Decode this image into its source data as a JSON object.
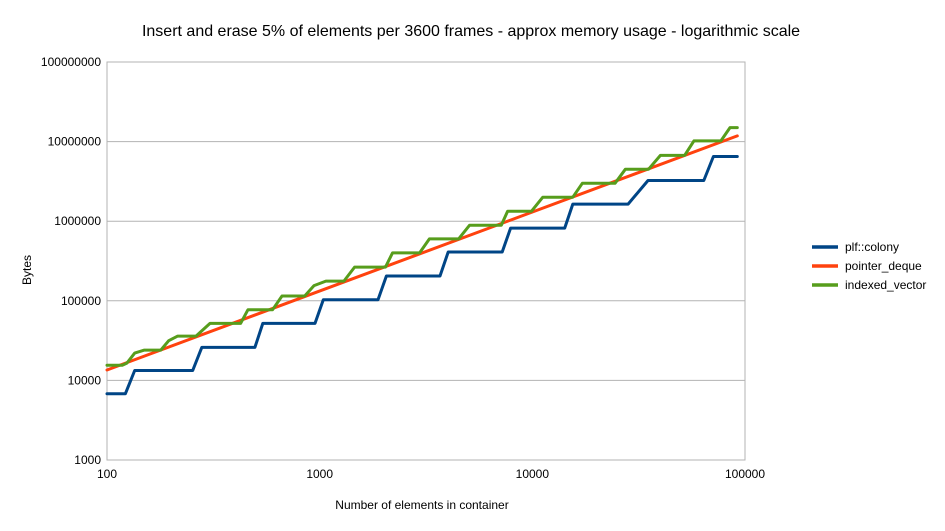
{
  "chart_data": {
    "type": "line",
    "title": "Insert and erase 5% of elements per 3600 frames - approx memory usage - logarithmic scale",
    "xlabel": "Number of elements in container",
    "ylabel": "Bytes",
    "xscale": "log",
    "yscale": "log",
    "xlim": [
      100,
      100000
    ],
    "ylim": [
      1000,
      100000000
    ],
    "x_ticks": [
      "100",
      "1000",
      "10000",
      "100000"
    ],
    "y_ticks": [
      "1000",
      "10000",
      "100000",
      "1000000",
      "10000000",
      "100000000"
    ],
    "grid": true,
    "legend": "right",
    "series": [
      {
        "name": "plf::colony",
        "color": "#004586",
        "points": [
          [
            100,
            6800
          ],
          [
            122,
            6800
          ],
          [
            135,
            13300
          ],
          [
            253,
            13300
          ],
          [
            279,
            26000
          ],
          [
            496,
            26000
          ],
          [
            540,
            52000
          ],
          [
            951,
            52000
          ],
          [
            1040,
            103000
          ],
          [
            1880,
            103000
          ],
          [
            2060,
            205000
          ],
          [
            3680,
            205000
          ],
          [
            4020,
            410000
          ],
          [
            7220,
            410000
          ],
          [
            7900,
            820000
          ],
          [
            14200,
            820000
          ],
          [
            15500,
            1640000
          ],
          [
            28200,
            1640000
          ],
          [
            35000,
            3250000
          ],
          [
            64000,
            3250000
          ],
          [
            71000,
            6500000
          ],
          [
            92000,
            6500000
          ]
        ]
      },
      {
        "name": "pointer_deque",
        "color": "#ff420e",
        "points": [
          [
            100,
            13500
          ],
          [
            92000,
            11800000
          ]
        ]
      },
      {
        "name": "indexed_vector",
        "color": "#579d1c",
        "points": [
          [
            100,
            15500
          ],
          [
            118,
            15500
          ],
          [
            124,
            16500
          ],
          [
            135,
            22000
          ],
          [
            150,
            24000
          ],
          [
            179,
            24000
          ],
          [
            195,
            31500
          ],
          [
            215,
            36000
          ],
          [
            262,
            36000
          ],
          [
            305,
            52000
          ],
          [
            425,
            52000
          ],
          [
            460,
            77000
          ],
          [
            600,
            77000
          ],
          [
            665,
            115000
          ],
          [
            850,
            115000
          ],
          [
            940,
            155000
          ],
          [
            1070,
            177000
          ],
          [
            1300,
            177000
          ],
          [
            1460,
            265000
          ],
          [
            2040,
            265000
          ],
          [
            2200,
            400000
          ],
          [
            2950,
            400000
          ],
          [
            3280,
            600000
          ],
          [
            4500,
            600000
          ],
          [
            5070,
            890000
          ],
          [
            7150,
            890000
          ],
          [
            7650,
            1330000
          ],
          [
            9900,
            1330000
          ],
          [
            11200,
            2000000
          ],
          [
            15500,
            2000000
          ],
          [
            17200,
            3000000
          ],
          [
            24500,
            3000000
          ],
          [
            27400,
            4500000
          ],
          [
            35200,
            4500000
          ],
          [
            40000,
            6700000
          ],
          [
            52000,
            6700000
          ],
          [
            57500,
            10200000
          ],
          [
            77000,
            10200000
          ],
          [
            85000,
            15000000
          ],
          [
            92000,
            15000000
          ]
        ]
      }
    ]
  }
}
